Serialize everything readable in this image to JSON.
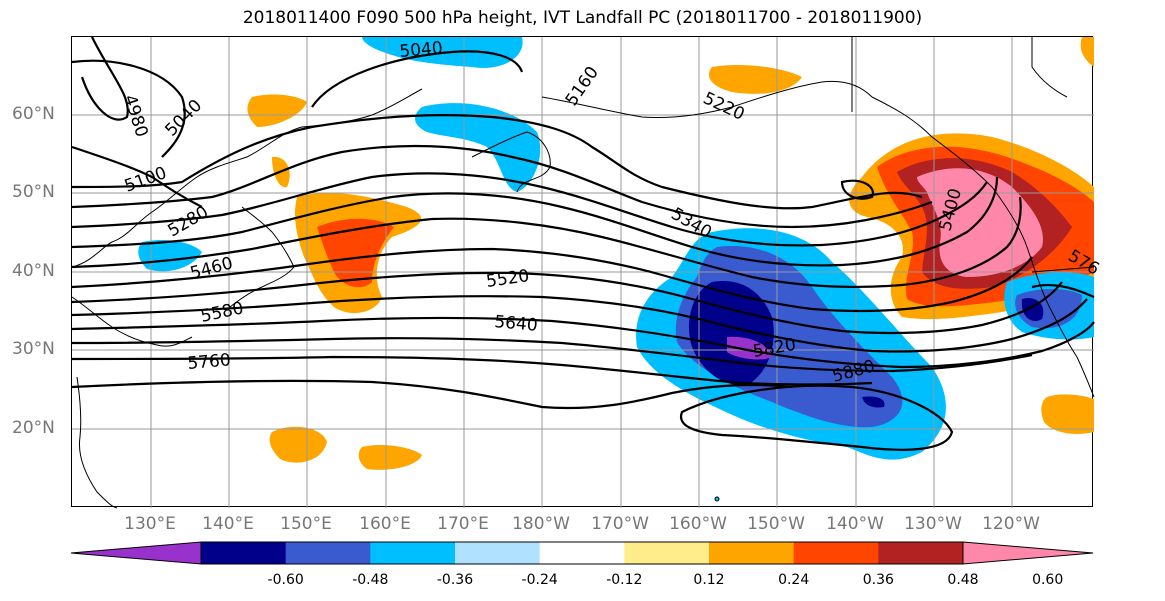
{
  "title": "2018011400 F090 500 hPa height, IVT Landfall PC (2018011700 - 2018011900)",
  "lat_labels": [
    "60°N",
    "50°N",
    "40°N",
    "30°N",
    "20°N"
  ],
  "lon_labels": [
    "130°E",
    "140°E",
    "150°E",
    "160°E",
    "170°E",
    "180°W",
    "170°W",
    "160°W",
    "150°W",
    "140°W",
    "130°W",
    "120°W"
  ],
  "contour_labels": [
    "4980",
    "5040",
    "5100",
    "5280",
    "5460",
    "5580",
    "5760",
    "5040",
    "5160",
    "5220",
    "5340",
    "5520",
    "5640",
    "5820",
    "5880",
    "5400",
    "576"
  ],
  "colorbar": {
    "ticks": [
      "-0.60",
      "-0.48",
      "-0.36",
      "-0.24",
      "-0.12",
      "0.12",
      "0.24",
      "0.36",
      "0.48",
      "0.60"
    ],
    "colors": [
      "#9932cc",
      "#00008b",
      "#3a5bd0",
      "#00bfff",
      "#b0e2ff",
      "#ffffff",
      "#ffec8b",
      "#ffa500",
      "#ff4500",
      "#b22222",
      "#ff88aa"
    ]
  },
  "colors": {
    "contour": "#000000",
    "coast": "#000000",
    "grid": "#999999",
    "axis_label": "#777777"
  }
}
